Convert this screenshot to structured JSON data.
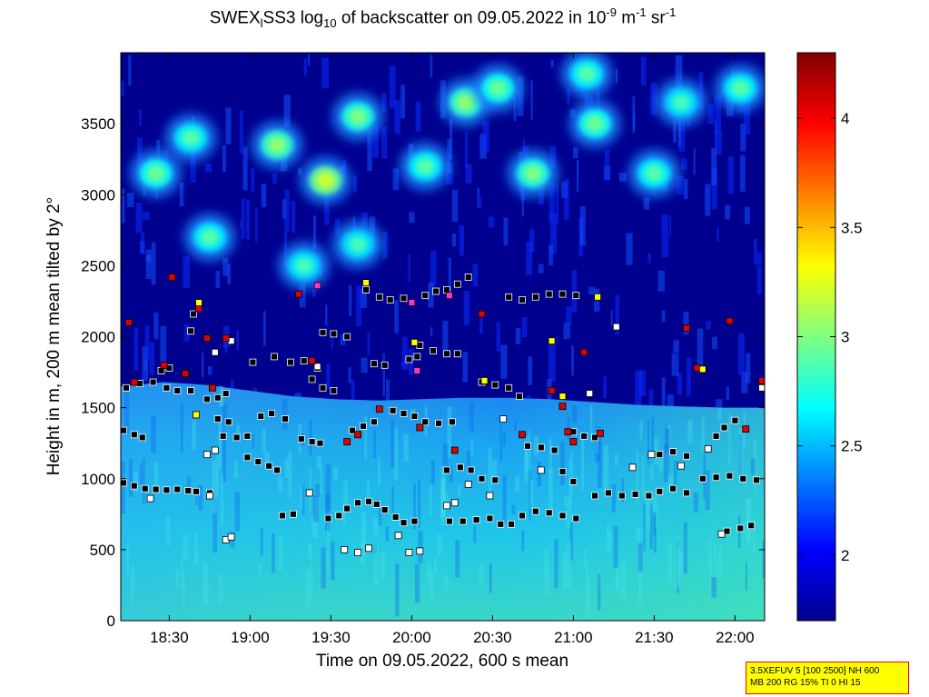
{
  "chart_data": {
    "type": "heatmap",
    "title": {
      "prefix": "SWEX",
      "sub1": "l",
      "mid": "SS3 log",
      "sub2": "10",
      "after": " of backscatter on 09.05.2022 in 10",
      "sup1": "-9",
      "after2": " m",
      "sup2": "-1",
      "after3": " sr",
      "sup3": "-1"
    },
    "xlabel": "Time on 09.05.2022, 600 s mean",
    "ylabel": "Height in m, 200 m mean tilted by 2°",
    "x_ticks": [
      {
        "minutes": 1110,
        "label": "18:30"
      },
      {
        "minutes": 1140,
        "label": "19:00"
      },
      {
        "minutes": 1170,
        "label": "19:30"
      },
      {
        "minutes": 1200,
        "label": "20:00"
      },
      {
        "minutes": 1230,
        "label": "20:30"
      },
      {
        "minutes": 1260,
        "label": "21:00"
      },
      {
        "minutes": 1290,
        "label": "21:30"
      },
      {
        "minutes": 1320,
        "label": "22:00"
      }
    ],
    "xlim_minutes": [
      1092,
      1331
    ],
    "y_ticks": [
      0,
      500,
      1000,
      1500,
      2000,
      2500,
      3000,
      3500
    ],
    "ylim": [
      0,
      4000
    ],
    "colorbar": {
      "ticks": [
        {
          "value": 2,
          "label": "2"
        },
        {
          "value": 2.5,
          "label": "2.5"
        },
        {
          "value": 3,
          "label": "3"
        },
        {
          "value": 3.5,
          "label": "3.5"
        },
        {
          "value": 4,
          "label": "4"
        }
      ],
      "range": [
        1.7,
        4.3
      ],
      "colormap": "jet"
    },
    "layers": {
      "aerosol_top": [
        1650,
        1680,
        1660,
        1620,
        1580,
        1560,
        1550,
        1560,
        1570,
        1570,
        1560,
        1540,
        1520,
        1510,
        1500,
        1500
      ],
      "clouds_upper": [
        {
          "t": 1105,
          "h": 3150,
          "v": 2.95
        },
        {
          "t": 1118,
          "h": 3400,
          "v": 2.9
        },
        {
          "t": 1125,
          "h": 2700,
          "v": 2.9
        },
        {
          "t": 1150,
          "h": 3350,
          "v": 3.05
        },
        {
          "t": 1160,
          "h": 2500,
          "v": 2.85
        },
        {
          "t": 1168,
          "h": 3100,
          "v": 3.2
        },
        {
          "t": 1180,
          "h": 3550,
          "v": 3.0
        },
        {
          "t": 1180,
          "h": 2650,
          "v": 2.85
        },
        {
          "t": 1205,
          "h": 3200,
          "v": 2.9
        },
        {
          "t": 1220,
          "h": 3650,
          "v": 3.05
        },
        {
          "t": 1232,
          "h": 3750,
          "v": 2.95
        },
        {
          "t": 1245,
          "h": 3150,
          "v": 3.0
        },
        {
          "t": 1265,
          "h": 3850,
          "v": 2.9
        },
        {
          "t": 1268,
          "h": 3500,
          "v": 2.95
        },
        {
          "t": 1290,
          "h": 3150,
          "v": 2.9
        },
        {
          "t": 1300,
          "h": 3650,
          "v": 2.85
        },
        {
          "t": 1322,
          "h": 3750,
          "v": 2.9
        }
      ]
    },
    "markers_black": [
      {
        "t": 1093,
        "h": 970
      },
      {
        "t": 1097,
        "h": 950
      },
      {
        "t": 1101,
        "h": 930
      },
      {
        "t": 1105,
        "h": 925
      },
      {
        "t": 1109,
        "h": 920
      },
      {
        "t": 1113,
        "h": 925
      },
      {
        "t": 1117,
        "h": 915
      },
      {
        "t": 1120,
        "h": 910
      },
      {
        "t": 1125,
        "h": 900
      },
      {
        "t": 1093,
        "h": 1340
      },
      {
        "t": 1097,
        "h": 1310
      },
      {
        "t": 1100,
        "h": 1290
      },
      {
        "t": 1094,
        "h": 1640
      },
      {
        "t": 1099,
        "h": 1670
      },
      {
        "t": 1104,
        "h": 1680
      },
      {
        "t": 1109,
        "h": 1640
      },
      {
        "t": 1113,
        "h": 1620
      },
      {
        "t": 1118,
        "h": 1620
      },
      {
        "t": 1110,
        "h": 1780
      },
      {
        "t": 1107,
        "h": 1760
      },
      {
        "t": 1119,
        "h": 2160
      },
      {
        "t": 1118,
        "h": 2040
      },
      {
        "t": 1124,
        "h": 1560
      },
      {
        "t": 1128,
        "h": 1570
      },
      {
        "t": 1131,
        "h": 1600
      },
      {
        "t": 1128,
        "h": 1420
      },
      {
        "t": 1132,
        "h": 1400
      },
      {
        "t": 1130,
        "h": 1300
      },
      {
        "t": 1135,
        "h": 1290
      },
      {
        "t": 1139,
        "h": 1300
      },
      {
        "t": 1139,
        "h": 1150
      },
      {
        "t": 1143,
        "h": 1120
      },
      {
        "t": 1147,
        "h": 1090
      },
      {
        "t": 1150,
        "h": 1060
      },
      {
        "t": 1144,
        "h": 1440
      },
      {
        "t": 1148,
        "h": 1460
      },
      {
        "t": 1153,
        "h": 1420
      },
      {
        "t": 1141,
        "h": 1820
      },
      {
        "t": 1149,
        "h": 1860
      },
      {
        "t": 1155,
        "h": 1820
      },
      {
        "t": 1160,
        "h": 1830
      },
      {
        "t": 1165,
        "h": 1780
      },
      {
        "t": 1159,
        "h": 1280
      },
      {
        "t": 1163,
        "h": 1260
      },
      {
        "t": 1166,
        "h": 1250
      },
      {
        "t": 1152,
        "h": 740
      },
      {
        "t": 1156,
        "h": 750
      },
      {
        "t": 1163,
        "h": 1700
      },
      {
        "t": 1167,
        "h": 1640
      },
      {
        "t": 1171,
        "h": 1620
      },
      {
        "t": 1167,
        "h": 2030
      },
      {
        "t": 1171,
        "h": 2020
      },
      {
        "t": 1176,
        "h": 2000
      },
      {
        "t": 1169,
        "h": 720
      },
      {
        "t": 1173,
        "h": 740
      },
      {
        "t": 1176,
        "h": 790
      },
      {
        "t": 1180,
        "h": 830
      },
      {
        "t": 1184,
        "h": 840
      },
      {
        "t": 1187,
        "h": 820
      },
      {
        "t": 1190,
        "h": 780
      },
      {
        "t": 1194,
        "h": 730
      },
      {
        "t": 1197,
        "h": 690
      },
      {
        "t": 1201,
        "h": 700
      },
      {
        "t": 1178,
        "h": 1340
      },
      {
        "t": 1182,
        "h": 1370
      },
      {
        "t": 1186,
        "h": 1400
      },
      {
        "t": 1186,
        "h": 1810
      },
      {
        "t": 1190,
        "h": 1800
      },
      {
        "t": 1183,
        "h": 2330
      },
      {
        "t": 1188,
        "h": 2280
      },
      {
        "t": 1192,
        "h": 2260
      },
      {
        "t": 1197,
        "h": 2270
      },
      {
        "t": 1193,
        "h": 1480
      },
      {
        "t": 1197,
        "h": 1460
      },
      {
        "t": 1201,
        "h": 1440
      },
      {
        "t": 1199,
        "h": 1840
      },
      {
        "t": 1202,
        "h": 1860
      },
      {
        "t": 1203,
        "h": 1940
      },
      {
        "t": 1208,
        "h": 1900
      },
      {
        "t": 1213,
        "h": 1880
      },
      {
        "t": 1217,
        "h": 1880
      },
      {
        "t": 1205,
        "h": 2290
      },
      {
        "t": 1209,
        "h": 2320
      },
      {
        "t": 1213,
        "h": 2330
      },
      {
        "t": 1217,
        "h": 2370
      },
      {
        "t": 1221,
        "h": 2420
      },
      {
        "t": 1205,
        "h": 1400
      },
      {
        "t": 1210,
        "h": 1390
      },
      {
        "t": 1215,
        "h": 1400
      },
      {
        "t": 1213,
        "h": 1060
      },
      {
        "t": 1218,
        "h": 1080
      },
      {
        "t": 1222,
        "h": 1060
      },
      {
        "t": 1226,
        "h": 1000
      },
      {
        "t": 1231,
        "h": 990
      },
      {
        "t": 1214,
        "h": 700
      },
      {
        "t": 1219,
        "h": 700
      },
      {
        "t": 1224,
        "h": 710
      },
      {
        "t": 1229,
        "h": 720
      },
      {
        "t": 1233,
        "h": 680
      },
      {
        "t": 1237,
        "h": 680
      },
      {
        "t": 1241,
        "h": 740
      },
      {
        "t": 1246,
        "h": 770
      },
      {
        "t": 1251,
        "h": 760
      },
      {
        "t": 1256,
        "h": 740
      },
      {
        "t": 1261,
        "h": 720
      },
      {
        "t": 1226,
        "h": 1680
      },
      {
        "t": 1231,
        "h": 1660
      },
      {
        "t": 1236,
        "h": 1640
      },
      {
        "t": 1240,
        "h": 1580
      },
      {
        "t": 1236,
        "h": 2280
      },
      {
        "t": 1241,
        "h": 2260
      },
      {
        "t": 1246,
        "h": 2280
      },
      {
        "t": 1251,
        "h": 2300
      },
      {
        "t": 1256,
        "h": 2300
      },
      {
        "t": 1261,
        "h": 2290
      },
      {
        "t": 1243,
        "h": 1230
      },
      {
        "t": 1248,
        "h": 1220
      },
      {
        "t": 1253,
        "h": 1200
      },
      {
        "t": 1256,
        "h": 1050
      },
      {
        "t": 1260,
        "h": 980
      },
      {
        "t": 1260,
        "h": 1330
      },
      {
        "t": 1264,
        "h": 1300
      },
      {
        "t": 1268,
        "h": 1290
      },
      {
        "t": 1268,
        "h": 880
      },
      {
        "t": 1273,
        "h": 900
      },
      {
        "t": 1278,
        "h": 880
      },
      {
        "t": 1283,
        "h": 890
      },
      {
        "t": 1288,
        "h": 880
      },
      {
        "t": 1292,
        "h": 910
      },
      {
        "t": 1297,
        "h": 930
      },
      {
        "t": 1302,
        "h": 900
      },
      {
        "t": 1292,
        "h": 1170
      },
      {
        "t": 1297,
        "h": 1190
      },
      {
        "t": 1302,
        "h": 1160
      },
      {
        "t": 1308,
        "h": 1000
      },
      {
        "t": 1313,
        "h": 1010
      },
      {
        "t": 1318,
        "h": 1020
      },
      {
        "t": 1323,
        "h": 1000
      },
      {
        "t": 1328,
        "h": 990
      },
      {
        "t": 1313,
        "h": 1300
      },
      {
        "t": 1316,
        "h": 1360
      },
      {
        "t": 1320,
        "h": 1410
      },
      {
        "t": 1317,
        "h": 630
      },
      {
        "t": 1322,
        "h": 650
      },
      {
        "t": 1326,
        "h": 670
      }
    ],
    "markers_red": [
      {
        "t": 1095,
        "h": 2100
      },
      {
        "t": 1097,
        "h": 1680
      },
      {
        "t": 1111,
        "h": 2420
      },
      {
        "t": 1108,
        "h": 1800
      },
      {
        "t": 1116,
        "h": 1740
      },
      {
        "t": 1121,
        "h": 2200
      },
      {
        "t": 1124,
        "h": 1990
      },
      {
        "t": 1126,
        "h": 1640
      },
      {
        "t": 1131,
        "h": 1990
      },
      {
        "t": 1158,
        "h": 2300
      },
      {
        "t": 1163,
        "h": 1830
      },
      {
        "t": 1176,
        "h": 1260
      },
      {
        "t": 1180,
        "h": 1310
      },
      {
        "t": 1188,
        "h": 1490
      },
      {
        "t": 1203,
        "h": 1360
      },
      {
        "t": 1216,
        "h": 1200
      },
      {
        "t": 1226,
        "h": 2160
      },
      {
        "t": 1241,
        "h": 1310
      },
      {
        "t": 1252,
        "h": 1620
      },
      {
        "t": 1256,
        "h": 1510
      },
      {
        "t": 1258,
        "h": 1330
      },
      {
        "t": 1260,
        "h": 1260
      },
      {
        "t": 1264,
        "h": 1890
      },
      {
        "t": 1270,
        "h": 1320
      },
      {
        "t": 1302,
        "h": 2060
      },
      {
        "t": 1306,
        "h": 1780
      },
      {
        "t": 1318,
        "h": 2110
      },
      {
        "t": 1324,
        "h": 1350
      },
      {
        "t": 1330,
        "h": 1690
      }
    ],
    "markers_yellow": [
      {
        "t": 1121,
        "h": 2240
      },
      {
        "t": 1120,
        "h": 1450
      },
      {
        "t": 1183,
        "h": 2380
      },
      {
        "t": 1201,
        "h": 1960
      },
      {
        "t": 1227,
        "h": 1690
      },
      {
        "t": 1252,
        "h": 1970
      },
      {
        "t": 1256,
        "h": 1580
      },
      {
        "t": 1308,
        "h": 1770
      },
      {
        "t": 1269,
        "h": 2280
      }
    ],
    "markers_magenta": [
      {
        "t": 1165,
        "h": 2360
      },
      {
        "t": 1200,
        "h": 2240
      },
      {
        "t": 1202,
        "h": 1760
      },
      {
        "t": 1214,
        "h": 2290
      }
    ],
    "markers_white": [
      {
        "t": 1103,
        "h": 860
      },
      {
        "t": 1125,
        "h": 880
      },
      {
        "t": 1127,
        "h": 1890
      },
      {
        "t": 1133,
        "h": 1970
      },
      {
        "t": 1127,
        "h": 1200
      },
      {
        "t": 1124,
        "h": 1170
      },
      {
        "t": 1131,
        "h": 570
      },
      {
        "t": 1133,
        "h": 590
      },
      {
        "t": 1165,
        "h": 1790
      },
      {
        "t": 1162,
        "h": 900
      },
      {
        "t": 1175,
        "h": 500
      },
      {
        "t": 1180,
        "h": 480
      },
      {
        "t": 1184,
        "h": 510
      },
      {
        "t": 1195,
        "h": 600
      },
      {
        "t": 1199,
        "h": 480
      },
      {
        "t": 1203,
        "h": 490
      },
      {
        "t": 1213,
        "h": 810
      },
      {
        "t": 1216,
        "h": 830
      },
      {
        "t": 1221,
        "h": 960
      },
      {
        "t": 1229,
        "h": 880
      },
      {
        "t": 1234,
        "h": 1420
      },
      {
        "t": 1248,
        "h": 1060
      },
      {
        "t": 1266,
        "h": 1600
      },
      {
        "t": 1276,
        "h": 2070
      },
      {
        "t": 1282,
        "h": 1080
      },
      {
        "t": 1289,
        "h": 1170
      },
      {
        "t": 1300,
        "h": 1090
      },
      {
        "t": 1315,
        "h": 610
      },
      {
        "t": 1330,
        "h": 1640
      },
      {
        "t": 1310,
        "h": 1210
      }
    ]
  },
  "infobox": {
    "line1": "3.5XEFUV 5 [100 2500] NH 600",
    "line2": "MB 200 RG 15% TI 0 HI 15"
  }
}
